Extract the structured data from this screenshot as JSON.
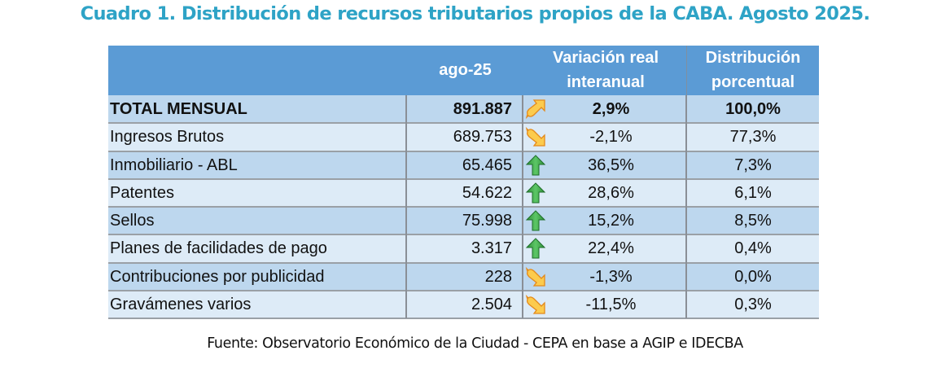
{
  "title": "Cuadro 1. Distribución de recursos tributarios propios de la CABA. Agosto 2025.",
  "colors": {
    "title": "#2EA3C6",
    "header_bg": "#5B9BD5",
    "row_dark": "#BDD7EE",
    "row_light": "#DDEBF7",
    "arrow_up_green": "#3EA84A",
    "arrow_orange": "#F9B233"
  },
  "table": {
    "headers": {
      "col1": "",
      "col2": "ago-25",
      "col3_line1": "Variación real",
      "col3_line2": "interanual",
      "col4_line1": "Distribución",
      "col4_line2": "porcentual"
    },
    "rows": [
      {
        "label": "TOTAL MENSUAL",
        "value": "891.887",
        "icon": "arrow-up-right-icon",
        "variation": "2,9%",
        "distribution": "100,0%"
      },
      {
        "label": "Ingresos Brutos",
        "value": "689.753",
        "icon": "arrow-down-right-icon",
        "variation": "-2,1%",
        "distribution": "77,3%"
      },
      {
        "label": "Inmobiliario - ABL",
        "value": "65.465",
        "icon": "arrow-up-icon",
        "variation": "36,5%",
        "distribution": "7,3%"
      },
      {
        "label": "Patentes",
        "value": "54.622",
        "icon": "arrow-up-icon",
        "variation": "28,6%",
        "distribution": "6,1%"
      },
      {
        "label": "Sellos",
        "value": "75.998",
        "icon": "arrow-up-icon",
        "variation": "15,2%",
        "distribution": "8,5%"
      },
      {
        "label": "Planes de facilidades de pago",
        "value": "3.317",
        "icon": "arrow-up-icon",
        "variation": "22,4%",
        "distribution": "0,4%"
      },
      {
        "label": "Contribuciones por publicidad",
        "value": "228",
        "icon": "arrow-down-right-icon",
        "variation": "-1,3%",
        "distribution": "0,0%"
      },
      {
        "label": "Gravámenes varios",
        "value": "2.504",
        "icon": "arrow-down-right-icon",
        "variation": "-11,5%",
        "distribution": "0,3%"
      }
    ]
  },
  "source": "Fuente: Observatorio Económico de la Ciudad - CEPA en base a AGIP e IDECBA"
}
